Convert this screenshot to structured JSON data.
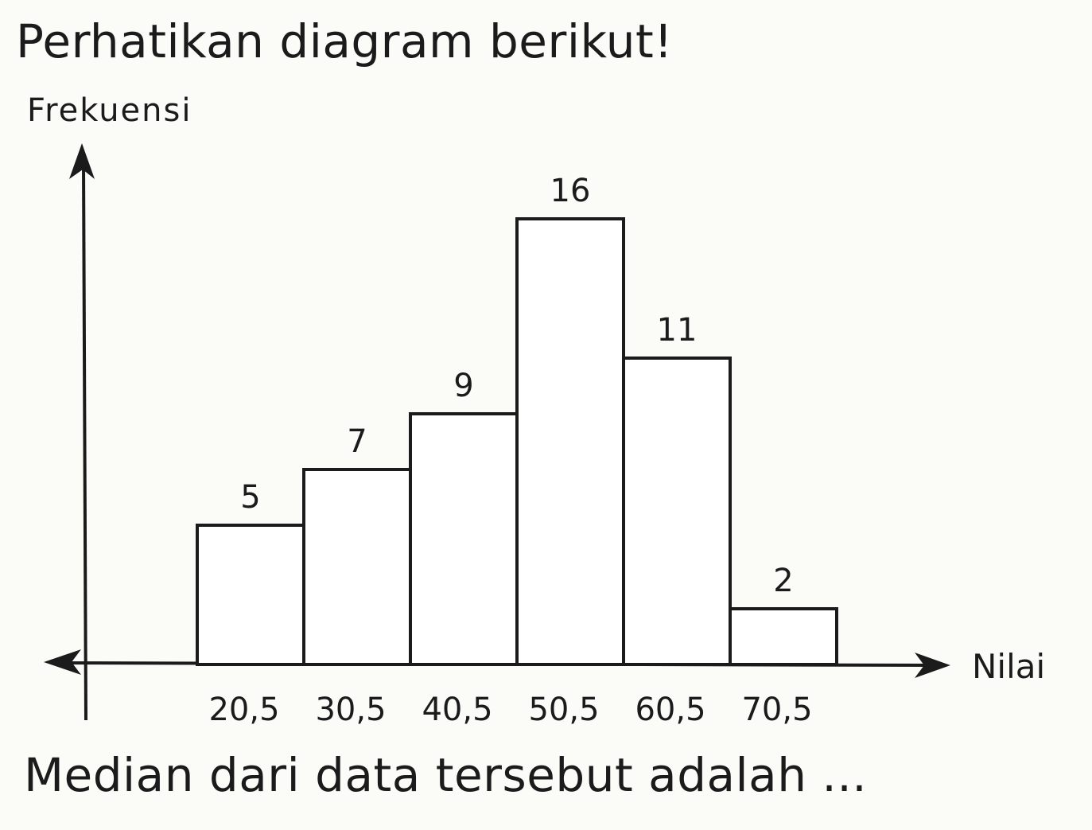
{
  "problem": {
    "intro": "Perhatikan diagram berikut!",
    "question": "Median dari data tersebut adalah ..."
  },
  "chart_data": {
    "type": "bar",
    "histogram": true,
    "categories": [
      "20,5",
      "30,5",
      "40,5",
      "50,5",
      "60,5",
      "70,5"
    ],
    "values": [
      5,
      7,
      9,
      16,
      11,
      2
    ],
    "data_labels": [
      "5",
      "7",
      "9",
      "16",
      "11",
      "2"
    ],
    "title": "",
    "xlabel": "Nilai",
    "ylabel": "Frekuensi",
    "ylim": [
      0,
      20
    ],
    "grid": false,
    "legend": "none",
    "colors": {
      "bar_fill": "#ffffff",
      "bar_stroke": "#1b1b1b",
      "axis": "#1b1b1b",
      "background": "#fbfbf8"
    }
  }
}
